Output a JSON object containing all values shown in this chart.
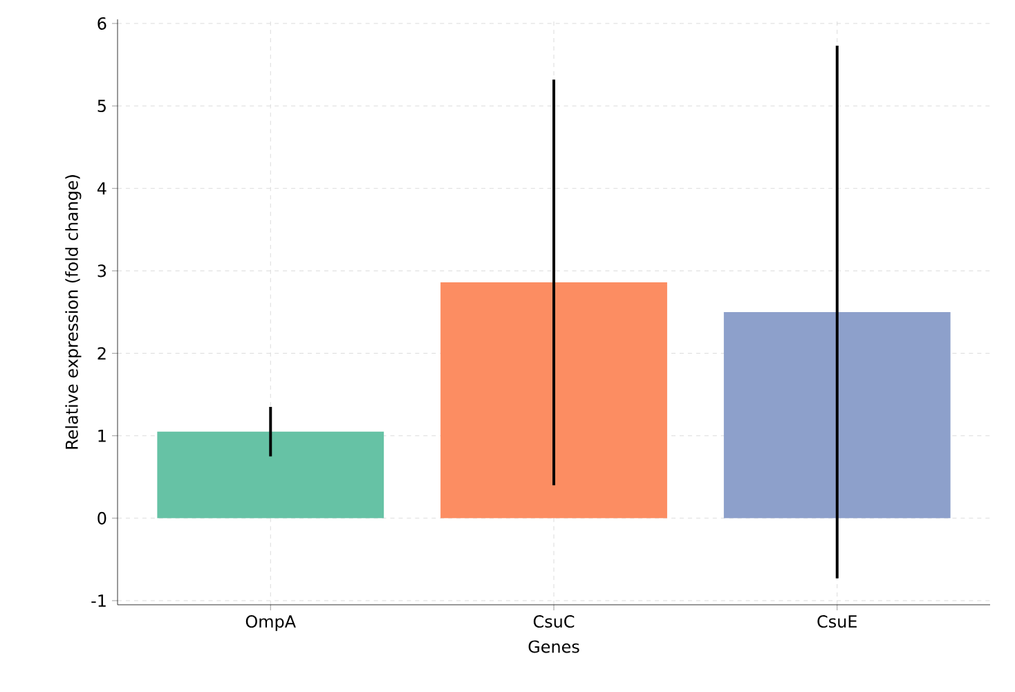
{
  "chart_data": {
    "type": "bar",
    "xlabel": "Genes",
    "ylabel": "Relative expression (fold change)",
    "categories": [
      "OmpA",
      "CsuC",
      "CsuE"
    ],
    "values": [
      1.05,
      2.86,
      2.5
    ],
    "colors": [
      "#66c2a5",
      "#fc8d62",
      "#8da0cb"
    ],
    "errors": [
      0.3,
      2.46,
      3.23
    ],
    "ylim": [
      -1.05,
      6.05
    ],
    "yticks": [
      -1,
      0,
      1,
      2,
      3,
      4,
      5,
      6
    ],
    "grid": true
  }
}
